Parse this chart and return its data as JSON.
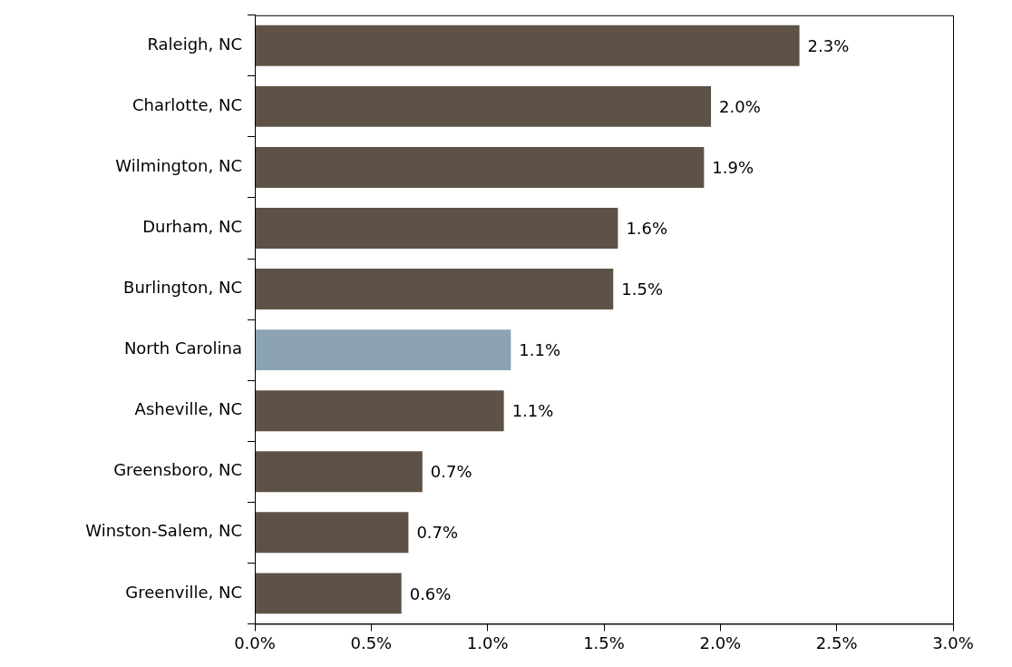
{
  "chart_data": {
    "type": "bar",
    "orientation": "horizontal",
    "categories": [
      "Raleigh, NC",
      "Charlotte, NC",
      "Wilmington, NC",
      "Durham, NC",
      "Burlington, NC",
      "North Carolina",
      "Asheville, NC",
      "Greensboro, NC",
      "Winston-Salem, NC",
      "Greenville, NC"
    ],
    "values": [
      2.34,
      1.96,
      1.93,
      1.56,
      1.54,
      1.1,
      1.07,
      0.72,
      0.66,
      0.63
    ],
    "colors": [
      "#5e5246",
      "#5e5246",
      "#5e5246",
      "#5e5246",
      "#5e5246",
      "#8ba3b3",
      "#5e5246",
      "#5e5246",
      "#5e5246",
      "#5e5246"
    ],
    "value_labels": [
      "2.3%",
      "2.0%",
      "1.9%",
      "1.6%",
      "1.5%",
      "1.1%",
      "1.1%",
      "0.7%",
      "0.7%",
      "0.6%"
    ],
    "xlim": [
      0,
      3
    ],
    "xticks": [
      {
        "value": 0,
        "label": "0.0%"
      },
      {
        "value": 0.5,
        "label": "0.5%"
      },
      {
        "value": 1,
        "label": "1.0%"
      },
      {
        "value": 1.5,
        "label": "1.5%"
      },
      {
        "value": 2,
        "label": "2.0%"
      },
      {
        "value": 2.5,
        "label": "2.5%"
      },
      {
        "value": 3,
        "label": "3.0%"
      }
    ]
  }
}
